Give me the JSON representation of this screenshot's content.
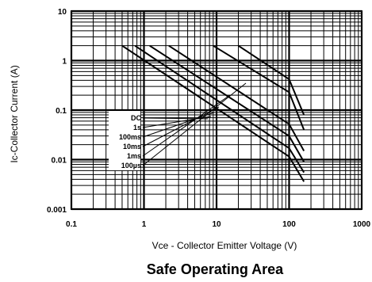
{
  "chart_data": {
    "type": "line",
    "title": "Safe Operating Area",
    "xlabel": "VCE - Collector Emitter Voltage (V)",
    "xlabel_prefix": "Vce",
    "xlabel_rest": " - Collector Emitter Voltage (V)",
    "ylabel": "Ic-Collector Current (A)",
    "x_scale": "log",
    "y_scale": "log",
    "xlim": [
      0.1,
      1000
    ],
    "ylim": [
      0.001,
      10
    ],
    "grid": true,
    "x_tick_labels": [
      "0.1",
      "1",
      "10",
      "100",
      "1000"
    ],
    "y_tick_labels": [
      "10",
      "1",
      "0.1",
      "0.01",
      "0.001"
    ],
    "legend_position": "center-left",
    "series": [
      {
        "name": "DC",
        "x": [
          0.5,
          100,
          160
        ],
        "y": [
          2,
          0.0115,
          0.0036
        ]
      },
      {
        "name": "1s",
        "x": [
          0.75,
          100,
          160
        ],
        "y": [
          2,
          0.017,
          0.0055
        ]
      },
      {
        "name": "100ms",
        "x": [
          1.2,
          100,
          160
        ],
        "y": [
          2,
          0.03,
          0.009
        ]
      },
      {
        "name": "10ms",
        "x": [
          2.2,
          100,
          160
        ],
        "y": [
          2,
          0.052,
          0.015
        ]
      },
      {
        "name": "1ms",
        "x": [
          9,
          100,
          160
        ],
        "y": [
          2,
          0.23,
          0.04
        ]
      },
      {
        "name": "100µs",
        "x": [
          20,
          100,
          160
        ],
        "y": [
          2,
          0.42,
          0.08
        ]
      }
    ]
  }
}
